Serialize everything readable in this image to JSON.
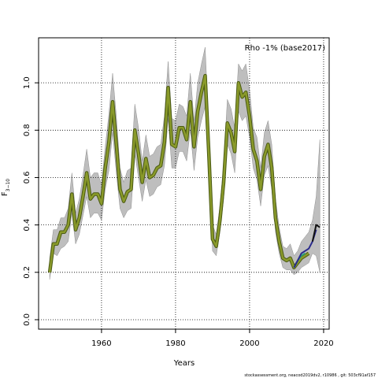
{
  "chart_data": {
    "type": "line",
    "annotation": "Rho -1% (base2017)",
    "xlabel": "Years",
    "ylabel": "F",
    "ylabel_sub": "3−10",
    "credit": "stockassessment.org, neacod2019dv2, r10986 , git: 503cf91af157",
    "xlim": [
      1943,
      2021.5
    ],
    "ylim": [
      -0.04,
      1.19
    ],
    "x_ticks": [
      1960,
      1980,
      2000,
      2020
    ],
    "y_ticks": [
      0.0,
      0.2,
      0.4,
      0.6,
      0.8,
      1.0
    ],
    "y_tick_labels": [
      "0.0",
      "0.2",
      "0.4",
      "0.6",
      "0.8",
      "1.0"
    ],
    "grid": true,
    "colors": {
      "band": "#bebebe",
      "band_edge": "#8f8f8f",
      "base_line": "#8a9a2a",
      "base_halo": "#4a5a14",
      "peel_blue": "#2a2a8c",
      "peel_black": "#111111",
      "peel_teal": "#2aa07a"
    },
    "series": [
      {
        "role": "base",
        "x": [
          1946,
          1947,
          1948,
          1949,
          1950,
          1951,
          1952,
          1953,
          1954,
          1955,
          1956,
          1957,
          1958,
          1959,
          1960,
          1961,
          1962,
          1963,
          1964,
          1965,
          1966,
          1967,
          1968,
          1969,
          1970,
          1971,
          1972,
          1973,
          1974,
          1975,
          1976,
          1977,
          1978,
          1979,
          1980,
          1981,
          1982,
          1983,
          1984,
          1985,
          1986,
          1987,
          1988,
          1989,
          1990,
          1991,
          1992,
          1993,
          1994,
          1995,
          1996,
          1997,
          1998,
          1999,
          2000,
          2001,
          2002,
          2003,
          2004,
          2005,
          2006,
          2007,
          2008,
          2009,
          2010,
          2011,
          2012,
          2013,
          2014,
          2015,
          2016
        ],
        "y": [
          0.2,
          0.32,
          0.32,
          0.37,
          0.37,
          0.4,
          0.53,
          0.38,
          0.43,
          0.52,
          0.62,
          0.51,
          0.53,
          0.53,
          0.49,
          0.64,
          0.75,
          0.92,
          0.74,
          0.55,
          0.5,
          0.54,
          0.55,
          0.8,
          0.7,
          0.58,
          0.68,
          0.6,
          0.61,
          0.64,
          0.65,
          0.75,
          0.98,
          0.74,
          0.73,
          0.81,
          0.81,
          0.76,
          0.92,
          0.73,
          0.88,
          0.96,
          1.03,
          0.7,
          0.34,
          0.31,
          0.42,
          0.58,
          0.83,
          0.79,
          0.71,
          1.0,
          0.94,
          0.96,
          0.86,
          0.72,
          0.67,
          0.55,
          0.69,
          0.74,
          0.64,
          0.43,
          0.33,
          0.26,
          0.25,
          0.26,
          0.22,
          0.24,
          0.26,
          0.27,
          0.28
        ],
        "lower": [
          0.17,
          0.28,
          0.27,
          0.3,
          0.31,
          0.33,
          0.45,
          0.32,
          0.36,
          0.44,
          0.52,
          0.43,
          0.45,
          0.45,
          0.42,
          0.55,
          0.63,
          0.79,
          0.62,
          0.47,
          0.43,
          0.46,
          0.47,
          0.7,
          0.6,
          0.5,
          0.59,
          0.52,
          0.53,
          0.56,
          0.57,
          0.65,
          0.85,
          0.64,
          0.64,
          0.71,
          0.71,
          0.67,
          0.8,
          0.63,
          0.77,
          0.84,
          0.9,
          0.61,
          0.29,
          0.27,
          0.37,
          0.51,
          0.74,
          0.7,
          0.62,
          0.88,
          0.84,
          0.86,
          0.77,
          0.64,
          0.59,
          0.48,
          0.61,
          0.65,
          0.55,
          0.37,
          0.28,
          0.22,
          0.21,
          0.21,
          0.19,
          0.2,
          0.22,
          0.23,
          0.24
        ],
        "upper": [
          0.26,
          0.38,
          0.38,
          0.43,
          0.43,
          0.47,
          0.62,
          0.45,
          0.51,
          0.61,
          0.72,
          0.6,
          0.62,
          0.62,
          0.57,
          0.73,
          0.87,
          1.04,
          0.86,
          0.64,
          0.58,
          0.63,
          0.64,
          0.91,
          0.81,
          0.67,
          0.78,
          0.69,
          0.7,
          0.73,
          0.74,
          0.86,
          1.09,
          0.85,
          0.84,
          0.91,
          0.9,
          0.86,
          1.04,
          0.84,
          1.0,
          1.08,
          1.15,
          0.81,
          0.4,
          0.36,
          0.48,
          0.66,
          0.93,
          0.89,
          0.81,
          1.08,
          1.05,
          1.08,
          0.97,
          0.81,
          0.77,
          0.64,
          0.79,
          0.84,
          0.74,
          0.51,
          0.39,
          0.31,
          0.3,
          0.32,
          0.27,
          0.29,
          0.33,
          0.35,
          0.37
        ]
      },
      {
        "role": "peel",
        "color": "#2aa07a",
        "x": [
          2012,
          2013,
          2014,
          2015
        ],
        "y": [
          0.22,
          0.25,
          0.27,
          0.28
        ]
      },
      {
        "role": "peel",
        "color": "#2a2a8c",
        "x": [
          2012,
          2013,
          2014,
          2015,
          2016,
          2017,
          2018
        ],
        "y": [
          0.22,
          0.25,
          0.28,
          0.29,
          0.3,
          0.33,
          0.38
        ]
      },
      {
        "role": "peel",
        "color": "#111111",
        "x": [
          2017,
          2018,
          2019
        ],
        "y": [
          0.33,
          0.4,
          0.39
        ]
      }
    ],
    "band_tail": {
      "x": [
        2016,
        2017,
        2018,
        2019
      ],
      "lower": [
        0.24,
        0.28,
        0.27,
        0.2
      ],
      "upper": [
        0.37,
        0.42,
        0.52,
        0.76
      ]
    }
  }
}
